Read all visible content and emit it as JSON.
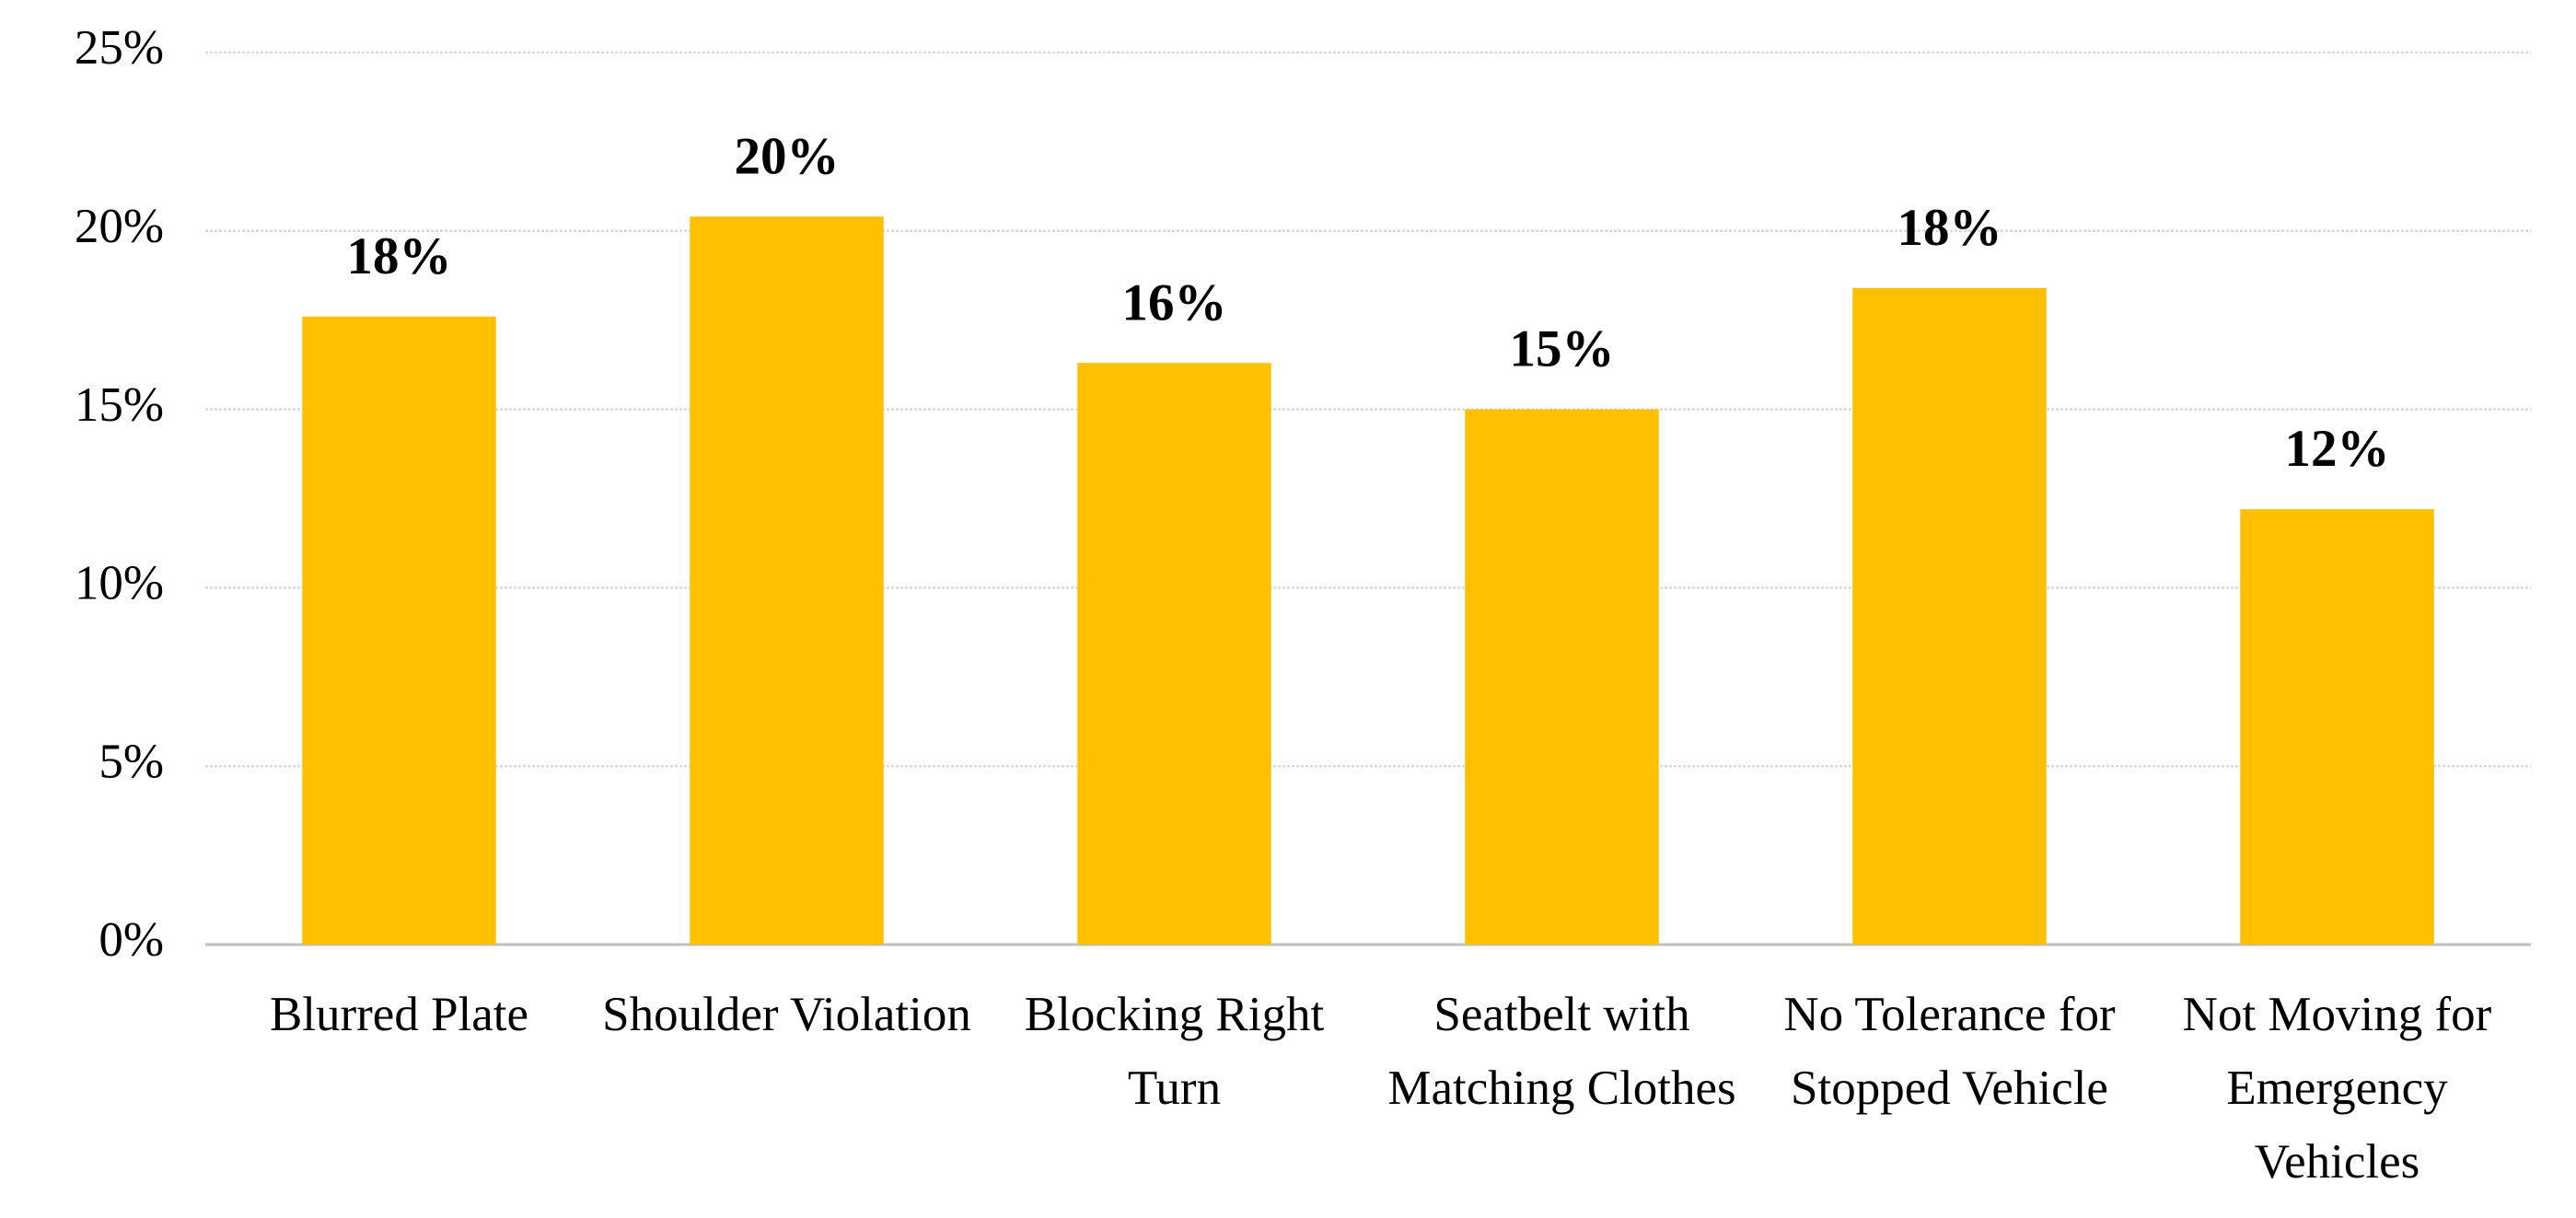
{
  "chart_data": {
    "type": "bar",
    "categories": [
      "Blurred Plate",
      "Shoulder Violation",
      "Blocking Right Turn",
      "Seatbelt with Matching Clothes",
      "No Tolerance for Stopped Vehicle",
      "Not Moving for Emergency Vehicles"
    ],
    "values": [
      17.6,
      20.4,
      16.3,
      15.0,
      18.4,
      12.2
    ],
    "value_labels": [
      "18%",
      "20%",
      "16%",
      "15%",
      "18%",
      "12%"
    ],
    "color": "#ffc000",
    "ylim": [
      0,
      25
    ],
    "yticks": [
      {
        "value": 0,
        "label": "0%"
      },
      {
        "value": 5,
        "label": "5%"
      },
      {
        "value": 10,
        "label": "10%"
      },
      {
        "value": 15,
        "label": "15%"
      },
      {
        "value": 20,
        "label": "20%"
      },
      {
        "value": 25,
        "label": "25%"
      }
    ],
    "grid": true
  }
}
